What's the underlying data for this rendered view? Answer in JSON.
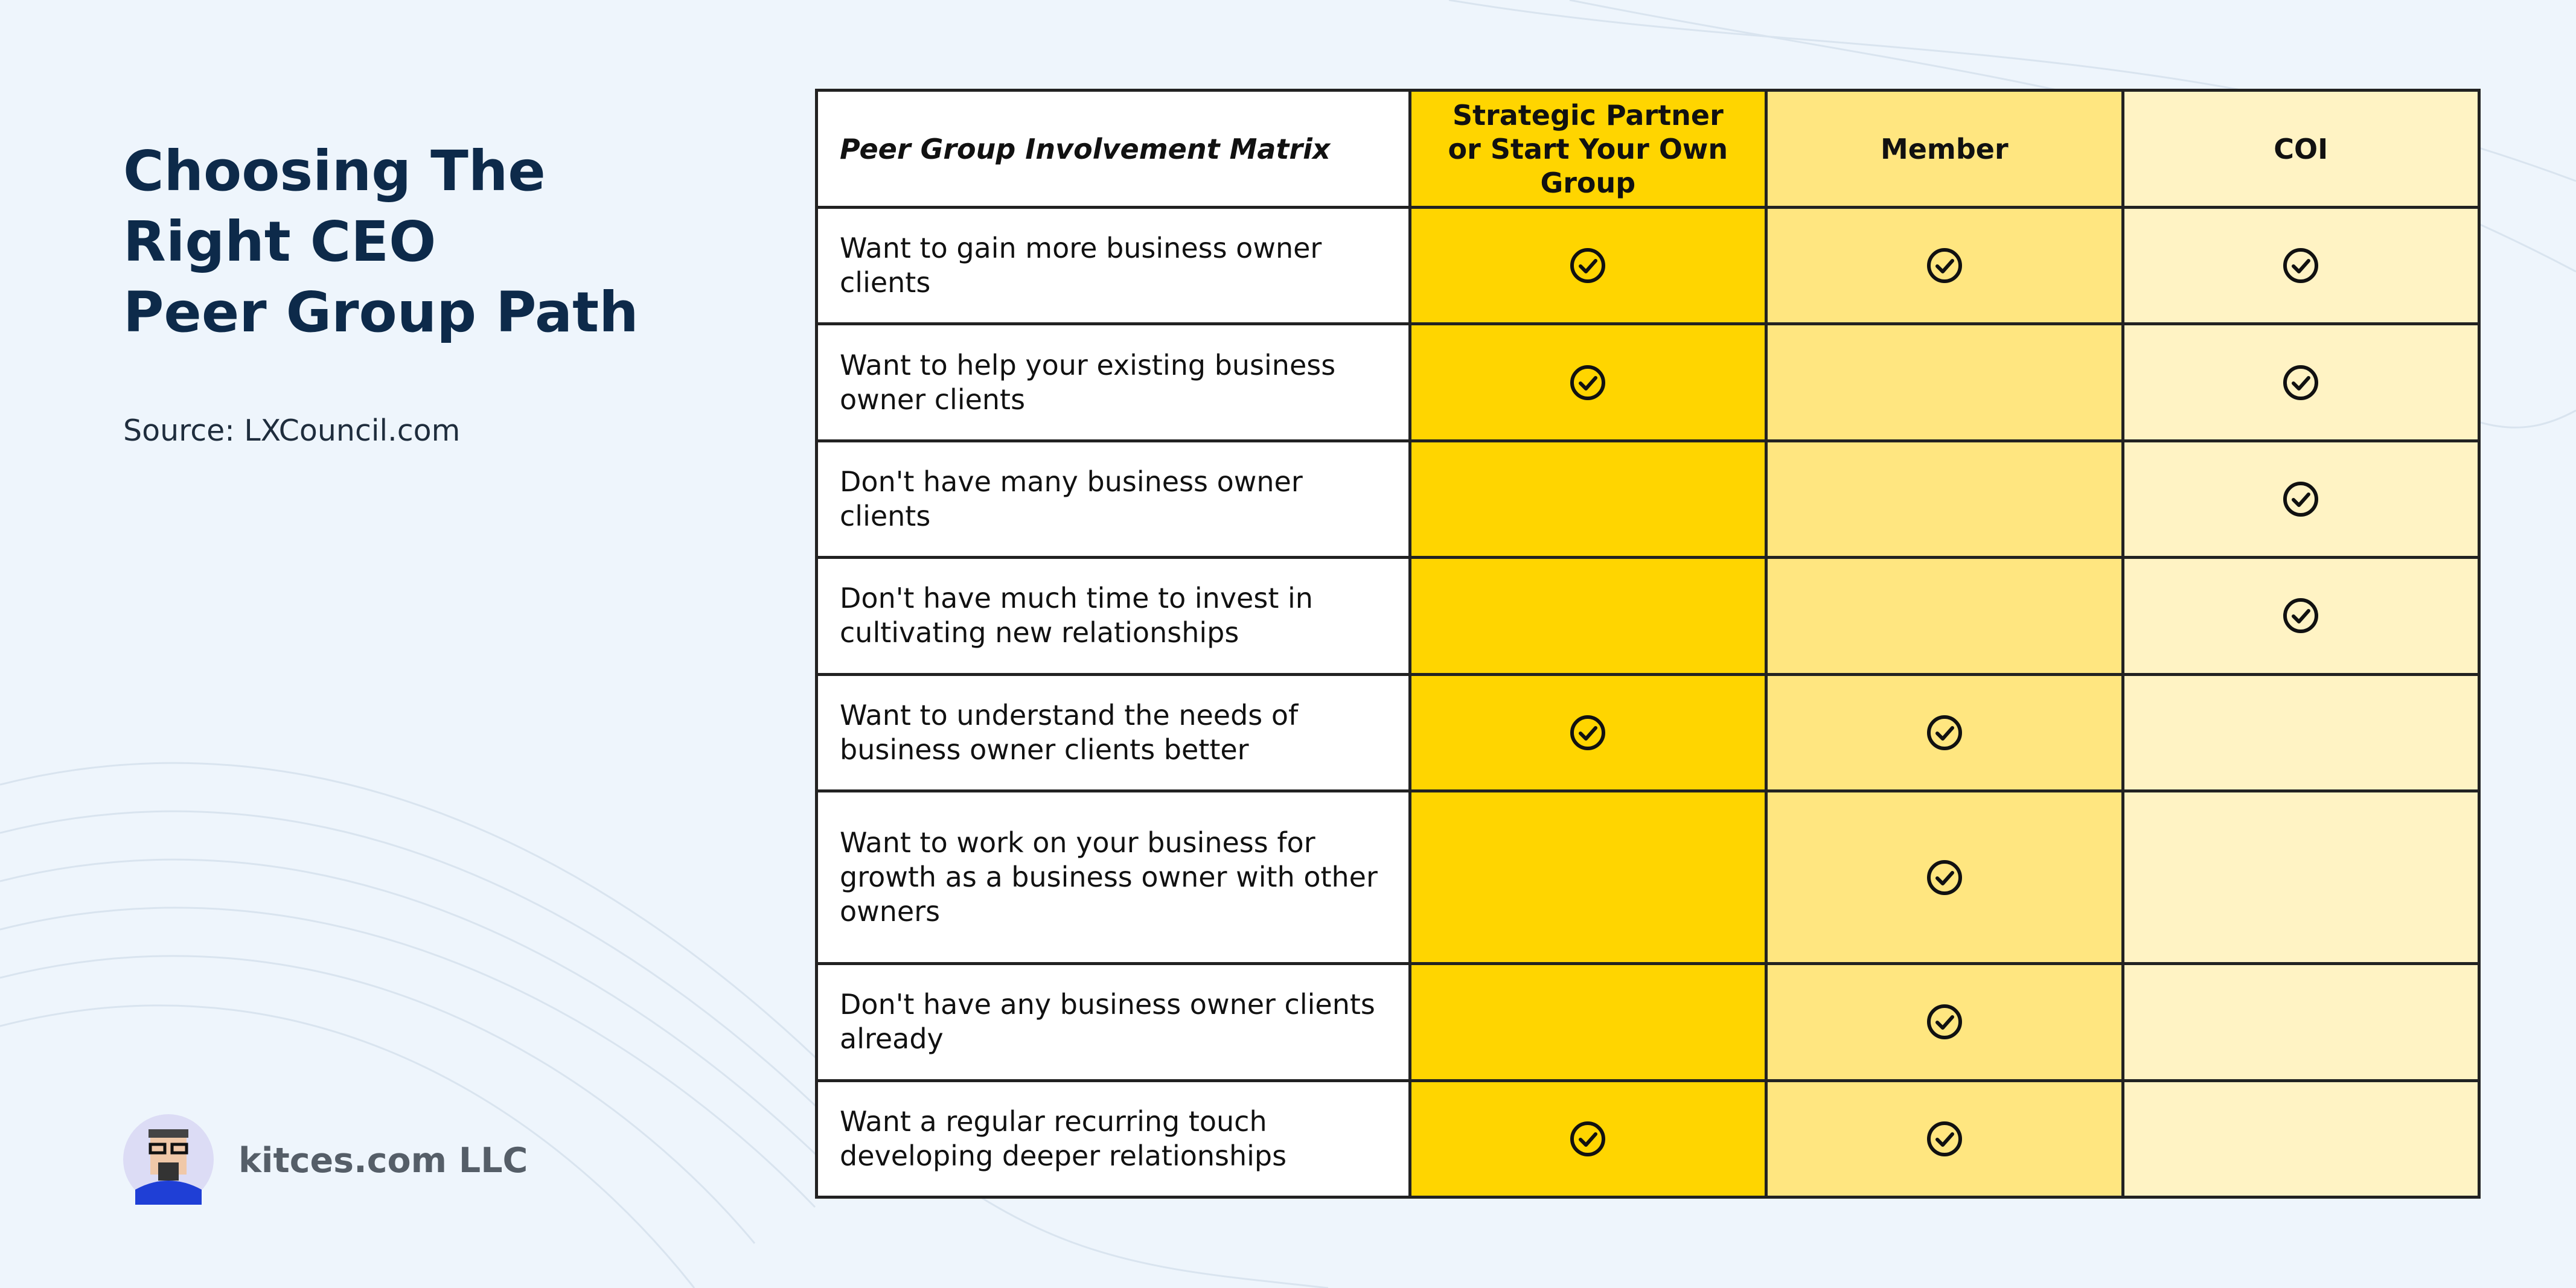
{
  "header": {
    "title_lines": [
      "Choosing The",
      "Right CEO",
      "Peer Group Path"
    ],
    "source": "Source: LXCouncil.com"
  },
  "footer": {
    "brand": "kitces.com LLC"
  },
  "table": {
    "columns": [
      "Peer Group Involvement Matrix",
      "Strategic Partner or Start Your Own Group",
      "Member",
      "COI"
    ],
    "column_colors": [
      "#ffffff",
      "#ffd500",
      "#ffe680",
      "#fff3c4"
    ],
    "rows": [
      {
        "label": "Want to gain more business owner clients",
        "checks": [
          true,
          true,
          true
        ]
      },
      {
        "label": "Want to help your existing business owner clients",
        "checks": [
          true,
          false,
          true
        ]
      },
      {
        "label": "Don't have many business owner clients",
        "checks": [
          false,
          false,
          true
        ]
      },
      {
        "label": "Don't have much time to invest in cultivating new relationships",
        "checks": [
          false,
          false,
          true
        ]
      },
      {
        "label": "Want to understand the needs of business owner clients better",
        "checks": [
          true,
          true,
          false
        ]
      },
      {
        "label": "Want to work on your business for growth as a business owner with other owners",
        "checks": [
          false,
          true,
          false
        ]
      },
      {
        "label": "Don't have any business owner clients already",
        "checks": [
          false,
          true,
          false
        ]
      },
      {
        "label": "Want a regular recurring touch developing deeper relationships",
        "checks": [
          true,
          true,
          false
        ]
      }
    ]
  }
}
